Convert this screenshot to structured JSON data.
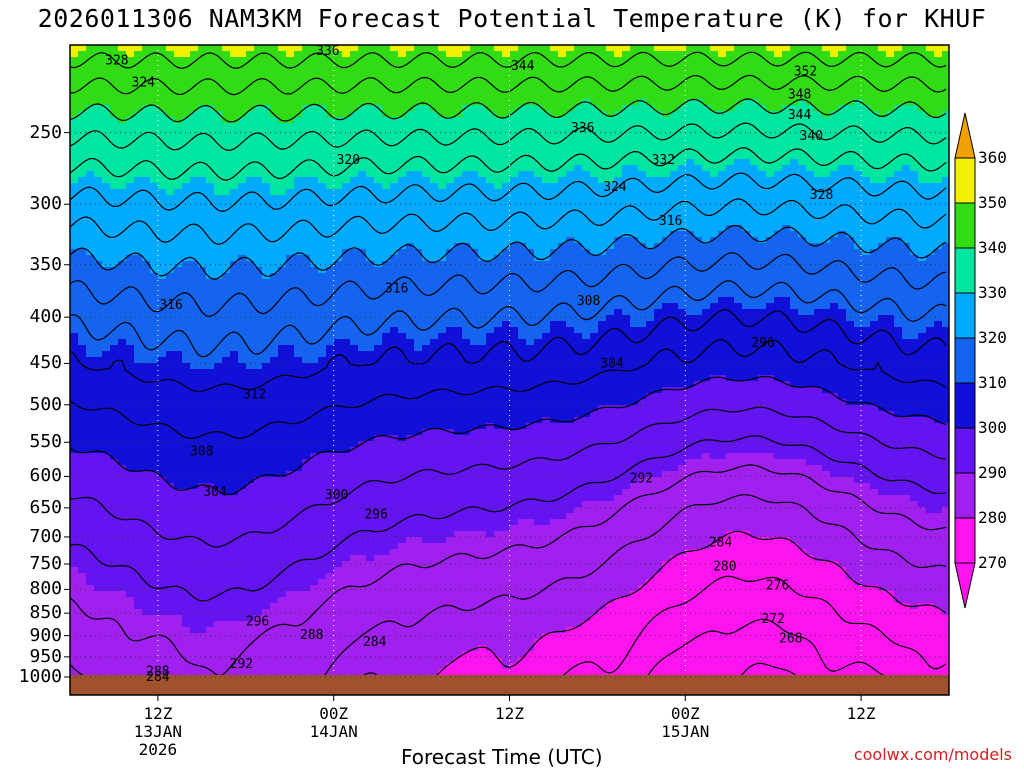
{
  "title": "2026011306 NAM3KM Forecast Potential Temperature (K) for KHUF",
  "chart_data": {
    "type": "contour",
    "variable": "Potential Temperature",
    "units": "K",
    "station": "KHUF",
    "model": "NAM3KM",
    "init": "2026011306",
    "xlabel": "Forecast Time (UTC)",
    "ylabel": "",
    "y_axis": {
      "scale": "log-pressure",
      "range": [
        1000,
        200
      ],
      "ticks": [
        250,
        300,
        350,
        400,
        450,
        500,
        550,
        600,
        650,
        700,
        750,
        800,
        850,
        900,
        950,
        1000
      ]
    },
    "x_axis": {
      "range_hours": [
        6,
        66
      ],
      "ticks": [
        {
          "hour": 12,
          "label": "12Z",
          "sub": [
            "13JAN",
            "2026"
          ]
        },
        {
          "hour": 24,
          "label": "00Z",
          "sub": [
            "14JAN"
          ]
        },
        {
          "hour": 36,
          "label": "12Z",
          "sub": []
        },
        {
          "hour": 48,
          "label": "00Z",
          "sub": [
            "15JAN"
          ]
        },
        {
          "hour": 60,
          "label": "12Z",
          "sub": []
        }
      ]
    },
    "colorbar": {
      "levels": [
        270,
        280,
        290,
        300,
        310,
        320,
        330,
        340,
        350,
        360
      ],
      "colors": [
        "#ff14f0",
        "#a020f0",
        "#6414f0",
        "#1010d8",
        "#1464f0",
        "#00aaff",
        "#00e6a0",
        "#32dc14",
        "#f0f000",
        "#f0a000"
      ]
    },
    "contour_interval_K": 4,
    "labeled_contours": [
      {
        "value": 328,
        "hour": 9.2,
        "p": 208
      },
      {
        "value": 324,
        "hour": 11.0,
        "p": 220
      },
      {
        "value": 336,
        "hour": 23.6,
        "p": 203
      },
      {
        "value": 344,
        "hour": 36.9,
        "p": 211
      },
      {
        "value": 352,
        "hour": 56.2,
        "p": 214
      },
      {
        "value": 348,
        "hour": 55.8,
        "p": 227
      },
      {
        "value": 344,
        "hour": 55.8,
        "p": 239
      },
      {
        "value": 340,
        "hour": 56.6,
        "p": 252
      },
      {
        "value": 336,
        "hour": 41.0,
        "p": 247
      },
      {
        "value": 332,
        "hour": 46.5,
        "p": 268
      },
      {
        "value": 328,
        "hour": 57.3,
        "p": 293
      },
      {
        "value": 324,
        "hour": 43.2,
        "p": 287
      },
      {
        "value": 320,
        "hour": 25.0,
        "p": 268
      },
      {
        "value": 316,
        "hour": 47.0,
        "p": 313
      },
      {
        "value": 316,
        "hour": 28.3,
        "p": 372
      },
      {
        "value": 316,
        "hour": 12.9,
        "p": 388
      },
      {
        "value": 308,
        "hour": 41.4,
        "p": 384
      },
      {
        "value": 304,
        "hour": 43.0,
        "p": 450
      },
      {
        "value": 296,
        "hour": 53.3,
        "p": 427
      },
      {
        "value": 312,
        "hour": 18.6,
        "p": 487
      },
      {
        "value": 308,
        "hour": 15.0,
        "p": 563
      },
      {
        "value": 304,
        "hour": 15.9,
        "p": 624
      },
      {
        "value": 300,
        "hour": 24.2,
        "p": 629
      },
      {
        "value": 296,
        "hour": 26.9,
        "p": 661
      },
      {
        "value": 292,
        "hour": 45.0,
        "p": 603
      },
      {
        "value": 284,
        "hour": 50.4,
        "p": 710
      },
      {
        "value": 280,
        "hour": 50.7,
        "p": 755
      },
      {
        "value": 276,
        "hour": 54.3,
        "p": 792
      },
      {
        "value": 272,
        "hour": 54.0,
        "p": 863
      },
      {
        "value": 268,
        "hour": 55.2,
        "p": 907
      },
      {
        "value": 296,
        "hour": 18.8,
        "p": 868
      },
      {
        "value": 288,
        "hour": 22.5,
        "p": 899
      },
      {
        "value": 284,
        "hour": 26.8,
        "p": 915
      },
      {
        "value": 292,
        "hour": 17.7,
        "p": 967
      },
      {
        "value": 288,
        "hour": 12.0,
        "p": 986
      },
      {
        "value": 284,
        "hour": 12.0,
        "p": 1000
      }
    ],
    "grid": true,
    "legend": "colorbar-right"
  },
  "footer": {
    "xlabel": "Forecast Time (UTC)",
    "credit": "coolwx.com/models"
  }
}
